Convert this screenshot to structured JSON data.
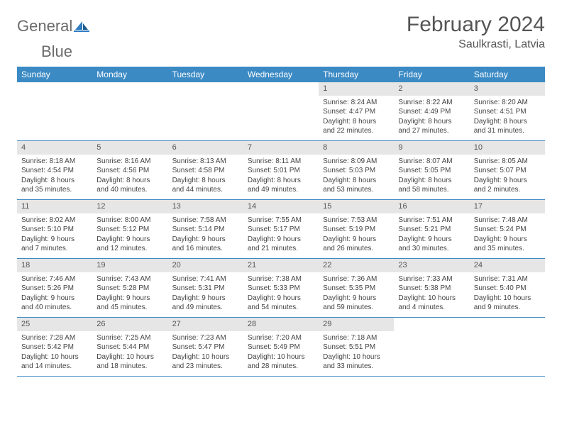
{
  "brand": {
    "word1": "General",
    "word2": "Blue"
  },
  "colors": {
    "header_bg": "#3b8ac4",
    "header_text": "#ffffff",
    "daynum_bg": "#e6e6e6",
    "border": "#3b8ac4",
    "text": "#444444",
    "title": "#555555"
  },
  "title": "February 2024",
  "location": "Saulkrasti, Latvia",
  "weekdays": [
    "Sunday",
    "Monday",
    "Tuesday",
    "Wednesday",
    "Thursday",
    "Friday",
    "Saturday"
  ],
  "weeks": [
    [
      {
        "empty": true
      },
      {
        "empty": true
      },
      {
        "empty": true
      },
      {
        "empty": true
      },
      {
        "num": "1",
        "sunrise": "Sunrise: 8:24 AM",
        "sunset": "Sunset: 4:47 PM",
        "daylight": "Daylight: 8 hours and 22 minutes."
      },
      {
        "num": "2",
        "sunrise": "Sunrise: 8:22 AM",
        "sunset": "Sunset: 4:49 PM",
        "daylight": "Daylight: 8 hours and 27 minutes."
      },
      {
        "num": "3",
        "sunrise": "Sunrise: 8:20 AM",
        "sunset": "Sunset: 4:51 PM",
        "daylight": "Daylight: 8 hours and 31 minutes."
      }
    ],
    [
      {
        "num": "4",
        "sunrise": "Sunrise: 8:18 AM",
        "sunset": "Sunset: 4:54 PM",
        "daylight": "Daylight: 8 hours and 35 minutes."
      },
      {
        "num": "5",
        "sunrise": "Sunrise: 8:16 AM",
        "sunset": "Sunset: 4:56 PM",
        "daylight": "Daylight: 8 hours and 40 minutes."
      },
      {
        "num": "6",
        "sunrise": "Sunrise: 8:13 AM",
        "sunset": "Sunset: 4:58 PM",
        "daylight": "Daylight: 8 hours and 44 minutes."
      },
      {
        "num": "7",
        "sunrise": "Sunrise: 8:11 AM",
        "sunset": "Sunset: 5:01 PM",
        "daylight": "Daylight: 8 hours and 49 minutes."
      },
      {
        "num": "8",
        "sunrise": "Sunrise: 8:09 AM",
        "sunset": "Sunset: 5:03 PM",
        "daylight": "Daylight: 8 hours and 53 minutes."
      },
      {
        "num": "9",
        "sunrise": "Sunrise: 8:07 AM",
        "sunset": "Sunset: 5:05 PM",
        "daylight": "Daylight: 8 hours and 58 minutes."
      },
      {
        "num": "10",
        "sunrise": "Sunrise: 8:05 AM",
        "sunset": "Sunset: 5:07 PM",
        "daylight": "Daylight: 9 hours and 2 minutes."
      }
    ],
    [
      {
        "num": "11",
        "sunrise": "Sunrise: 8:02 AM",
        "sunset": "Sunset: 5:10 PM",
        "daylight": "Daylight: 9 hours and 7 minutes."
      },
      {
        "num": "12",
        "sunrise": "Sunrise: 8:00 AM",
        "sunset": "Sunset: 5:12 PM",
        "daylight": "Daylight: 9 hours and 12 minutes."
      },
      {
        "num": "13",
        "sunrise": "Sunrise: 7:58 AM",
        "sunset": "Sunset: 5:14 PM",
        "daylight": "Daylight: 9 hours and 16 minutes."
      },
      {
        "num": "14",
        "sunrise": "Sunrise: 7:55 AM",
        "sunset": "Sunset: 5:17 PM",
        "daylight": "Daylight: 9 hours and 21 minutes."
      },
      {
        "num": "15",
        "sunrise": "Sunrise: 7:53 AM",
        "sunset": "Sunset: 5:19 PM",
        "daylight": "Daylight: 9 hours and 26 minutes."
      },
      {
        "num": "16",
        "sunrise": "Sunrise: 7:51 AM",
        "sunset": "Sunset: 5:21 PM",
        "daylight": "Daylight: 9 hours and 30 minutes."
      },
      {
        "num": "17",
        "sunrise": "Sunrise: 7:48 AM",
        "sunset": "Sunset: 5:24 PM",
        "daylight": "Daylight: 9 hours and 35 minutes."
      }
    ],
    [
      {
        "num": "18",
        "sunrise": "Sunrise: 7:46 AM",
        "sunset": "Sunset: 5:26 PM",
        "daylight": "Daylight: 9 hours and 40 minutes."
      },
      {
        "num": "19",
        "sunrise": "Sunrise: 7:43 AM",
        "sunset": "Sunset: 5:28 PM",
        "daylight": "Daylight: 9 hours and 45 minutes."
      },
      {
        "num": "20",
        "sunrise": "Sunrise: 7:41 AM",
        "sunset": "Sunset: 5:31 PM",
        "daylight": "Daylight: 9 hours and 49 minutes."
      },
      {
        "num": "21",
        "sunrise": "Sunrise: 7:38 AM",
        "sunset": "Sunset: 5:33 PM",
        "daylight": "Daylight: 9 hours and 54 minutes."
      },
      {
        "num": "22",
        "sunrise": "Sunrise: 7:36 AM",
        "sunset": "Sunset: 5:35 PM",
        "daylight": "Daylight: 9 hours and 59 minutes."
      },
      {
        "num": "23",
        "sunrise": "Sunrise: 7:33 AM",
        "sunset": "Sunset: 5:38 PM",
        "daylight": "Daylight: 10 hours and 4 minutes."
      },
      {
        "num": "24",
        "sunrise": "Sunrise: 7:31 AM",
        "sunset": "Sunset: 5:40 PM",
        "daylight": "Daylight: 10 hours and 9 minutes."
      }
    ],
    [
      {
        "num": "25",
        "sunrise": "Sunrise: 7:28 AM",
        "sunset": "Sunset: 5:42 PM",
        "daylight": "Daylight: 10 hours and 14 minutes."
      },
      {
        "num": "26",
        "sunrise": "Sunrise: 7:25 AM",
        "sunset": "Sunset: 5:44 PM",
        "daylight": "Daylight: 10 hours and 18 minutes."
      },
      {
        "num": "27",
        "sunrise": "Sunrise: 7:23 AM",
        "sunset": "Sunset: 5:47 PM",
        "daylight": "Daylight: 10 hours and 23 minutes."
      },
      {
        "num": "28",
        "sunrise": "Sunrise: 7:20 AM",
        "sunset": "Sunset: 5:49 PM",
        "daylight": "Daylight: 10 hours and 28 minutes."
      },
      {
        "num": "29",
        "sunrise": "Sunrise: 7:18 AM",
        "sunset": "Sunset: 5:51 PM",
        "daylight": "Daylight: 10 hours and 33 minutes."
      },
      {
        "empty": true
      },
      {
        "empty": true
      }
    ]
  ]
}
